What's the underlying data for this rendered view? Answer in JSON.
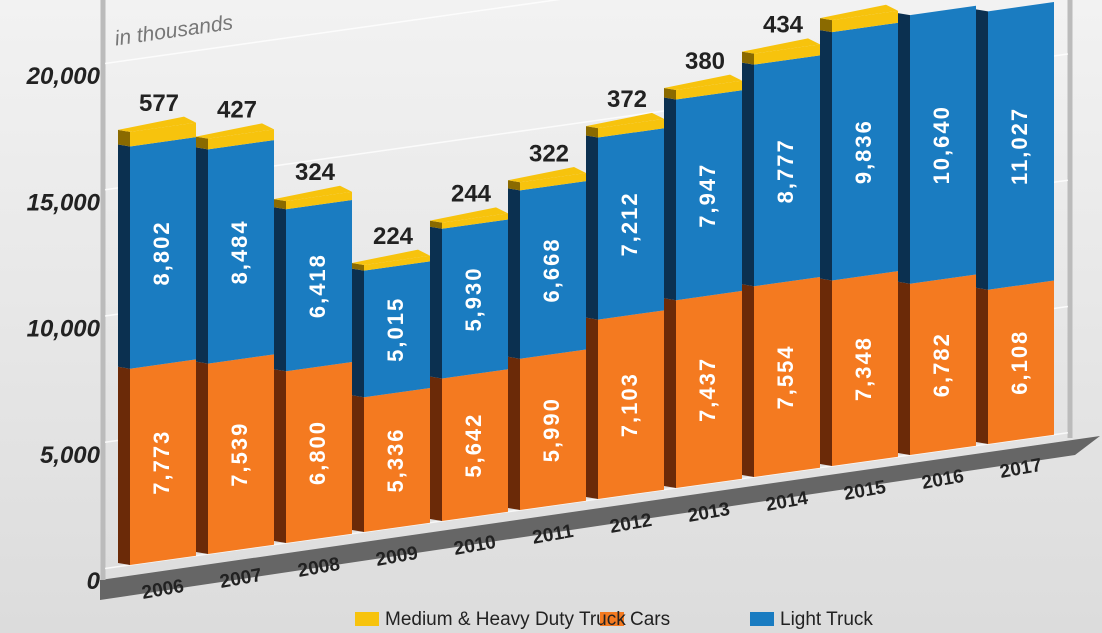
{
  "chart_data": {
    "type": "stacked-bar-3d",
    "annotation": "in thousands",
    "categories": [
      "2006",
      "2007",
      "2008",
      "2009",
      "2010",
      "2011",
      "2012",
      "2013",
      "2014",
      "2015",
      "2016",
      "2017"
    ],
    "series": [
      {
        "name": "Cars",
        "color": "#f47a20",
        "side": "#6b2a08",
        "values": [
          7773,
          7539,
          6800,
          5336,
          5642,
          5990,
          7103,
          7437,
          7554,
          7348,
          6782,
          6108
        ],
        "value_labels": [
          "7,773",
          "7,539",
          "6,800",
          "5,336",
          "5,642",
          "5,990",
          "7,103",
          "7,437",
          "7,554",
          "7,348",
          "6,782",
          "6,108"
        ]
      },
      {
        "name": "Light Truck",
        "color": "#1a7cc1",
        "side": "#0b3050",
        "values": [
          8802,
          8484,
          6418,
          5015,
          5930,
          6668,
          7212,
          7947,
          8777,
          9836,
          10640,
          11027
        ],
        "value_labels": [
          "8,802",
          "8,484",
          "6,418",
          "5,015",
          "5,930",
          "6,668",
          "7,212",
          "7,947",
          "8,777",
          "9,836",
          "10,640",
          "11,027"
        ]
      },
      {
        "name": "Medium & Heavy Duty Truck",
        "color": "#f7c30d",
        "side": "#8a6a00",
        "values": [
          577,
          427,
          324,
          224,
          244,
          322,
          372,
          380,
          434,
          476,
          null,
          null
        ]
      }
    ],
    "ylim": [
      0,
      20000
    ],
    "yticks": [
      0,
      {
        "value": 5000,
        "label": "5,000"
      },
      {
        "value": 10000,
        "label": "10,000"
      },
      {
        "value": 15000,
        "label": "15,000"
      },
      {
        "value": 20000,
        "label": "20,000"
      }
    ],
    "grid": true
  }
}
